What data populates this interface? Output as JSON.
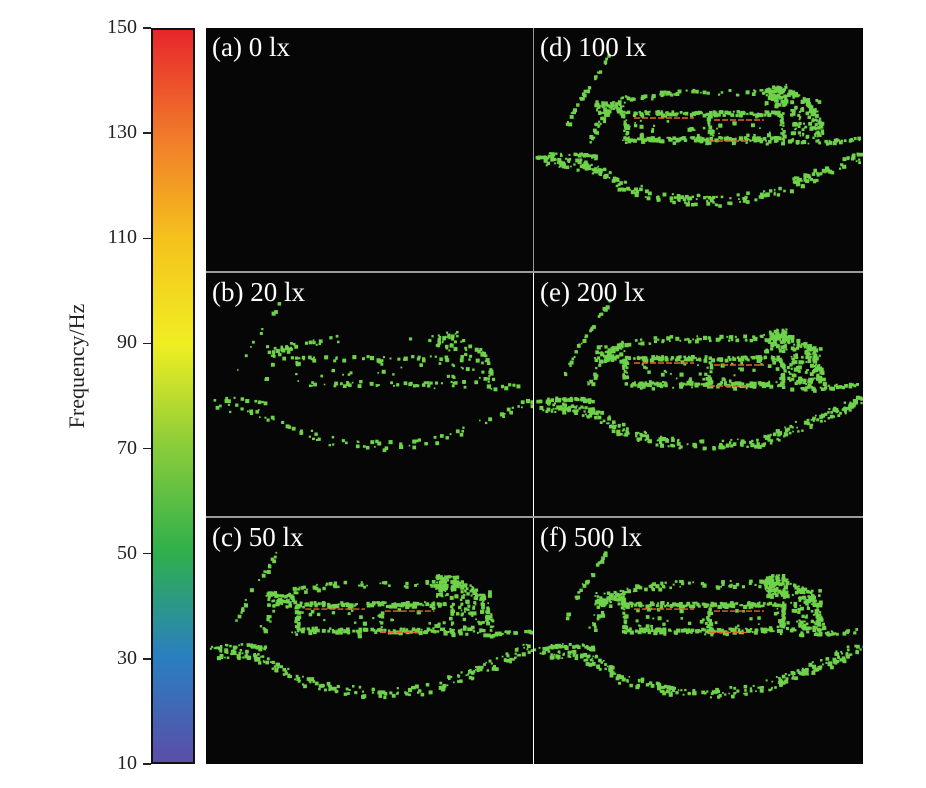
{
  "colorbar": {
    "label": "Frequency/Hz",
    "min": 10,
    "max": 150,
    "ticks": [
      150,
      130,
      110,
      90,
      70,
      50,
      30,
      10
    ],
    "colors": [
      "#e8262c",
      "#f0792a",
      "#f5c21c",
      "#f0ee22",
      "#88cc3a",
      "#2eb04c",
      "#2a7fc2",
      "#5a4ea8"
    ]
  },
  "panels": [
    {
      "id": "a",
      "label": "(a) 0 lx",
      "intensity": 0
    },
    {
      "id": "b",
      "label": "(b) 20 lx",
      "intensity": 0.45
    },
    {
      "id": "c",
      "label": "(c) 50 lx",
      "intensity": 0.8
    },
    {
      "id": "d",
      "label": "(d) 100 lx",
      "intensity": 0.9
    },
    {
      "id": "e",
      "label": "(e) 200 lx",
      "intensity": 1.0
    },
    {
      "id": "f",
      "label": "(f) 500 lx",
      "intensity": 1.0
    }
  ],
  "style": {
    "background": "#060606",
    "event_color": "#6ed24a",
    "highlight_color": "#e8622c"
  }
}
